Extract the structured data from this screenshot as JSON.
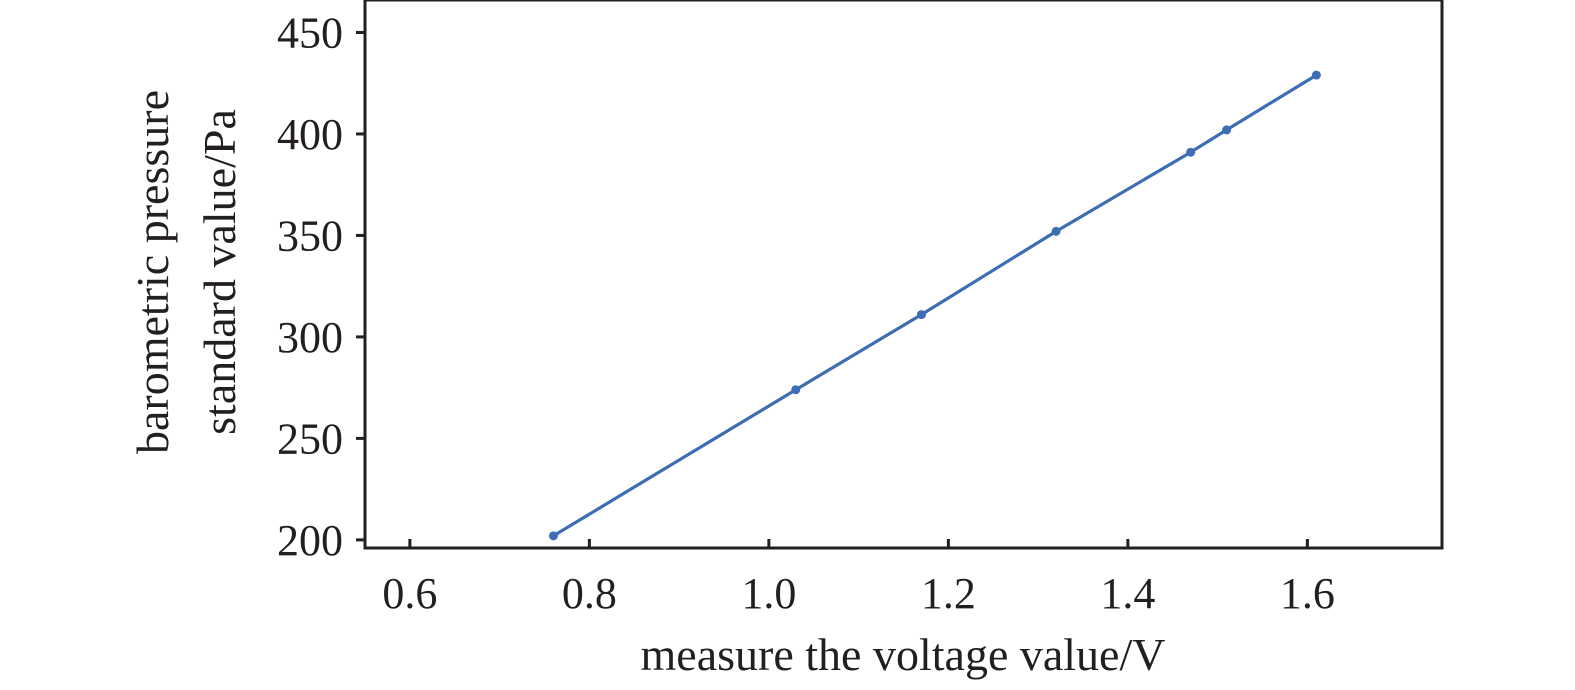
{
  "chart_data": {
    "type": "line",
    "title": "",
    "xlabel": "measure the voltage value/V",
    "ylabel_lines": [
      "barometric pressure",
      "standard value/Pa"
    ],
    "xlim": [
      0.55,
      1.75
    ],
    "ylim": [
      196,
      466
    ],
    "x_ticks": [
      0.6,
      0.8,
      1.0,
      1.2,
      1.4,
      1.6
    ],
    "x_tick_labels": [
      "0.6",
      "0.8",
      "1.0",
      "1.2",
      "1.4",
      "1.6"
    ],
    "y_ticks": [
      200,
      250,
      300,
      350,
      400,
      450
    ],
    "y_tick_labels": [
      "200",
      "250",
      "300",
      "350",
      "400",
      "450"
    ],
    "grid": false,
    "series": [
      {
        "color": "#3d6db3",
        "x": [
          0.76,
          1.03,
          1.17,
          1.32,
          1.47,
          1.51,
          1.61
        ],
        "y": [
          202,
          274,
          311,
          352,
          391,
          402,
          429
        ]
      }
    ]
  }
}
